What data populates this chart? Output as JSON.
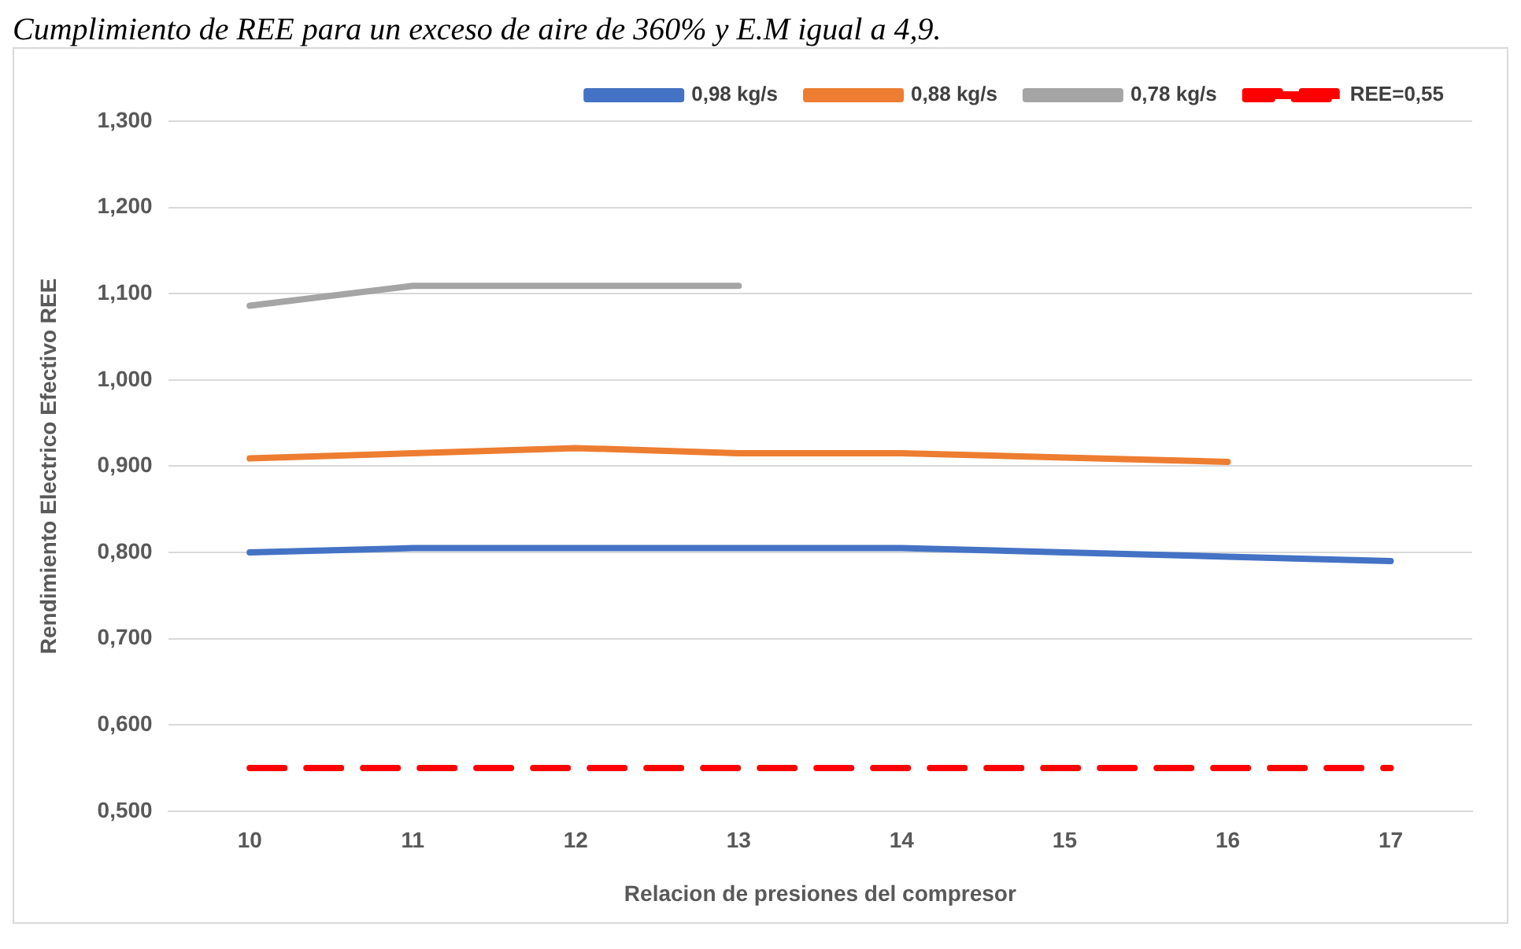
{
  "chart_data": {
    "type": "line",
    "title": "Cumplimiento de REE para un exceso de aire de 360% y E.M igual a 4,9.",
    "xlabel": "Relacion de presiones del compresor",
    "ylabel": "Rendimiento Electrico Efectivo REE",
    "categories": [
      "10",
      "11",
      "12",
      "13",
      "14",
      "15",
      "16",
      "17"
    ],
    "series": [
      {
        "name": "0,98 kg/s",
        "color": "#4472c4",
        "values": [
          0.8,
          0.805,
          0.805,
          0.805,
          0.805,
          0.8,
          0.795,
          0.79
        ]
      },
      {
        "name": "0,88 kg/s",
        "color": "#ed7d31",
        "values": [
          0.909,
          0.915,
          0.921,
          0.915,
          0.915,
          0.91,
          0.905,
          null
        ]
      },
      {
        "name": "0,78 kg/s",
        "color": "#a5a5a5",
        "values": [
          1.086,
          1.109,
          1.109,
          1.109,
          null,
          null,
          null,
          null
        ]
      },
      {
        "name": "REE=0,55",
        "color": "#ff0000",
        "line_style": "dashed",
        "values": [
          0.55,
          0.55,
          0.55,
          0.55,
          0.55,
          0.55,
          0.55,
          0.55
        ]
      }
    ],
    "ylim": [
      0.5,
      1.3
    ],
    "yticks": [
      {
        "value": 0.5,
        "label": "0,500"
      },
      {
        "value": 0.6,
        "label": "0,600"
      },
      {
        "value": 0.7,
        "label": "0,700"
      },
      {
        "value": 0.8,
        "label": "0,800"
      },
      {
        "value": 0.9,
        "label": "0,900"
      },
      {
        "value": 1.0,
        "label": "1,000"
      },
      {
        "value": 1.1,
        "label": "1,100"
      },
      {
        "value": 1.2,
        "label": "1,200"
      },
      {
        "value": 1.3,
        "label": "1,300"
      }
    ],
    "grid": "y",
    "legend": "top right",
    "marker": "none",
    "line_style": "solid"
  }
}
